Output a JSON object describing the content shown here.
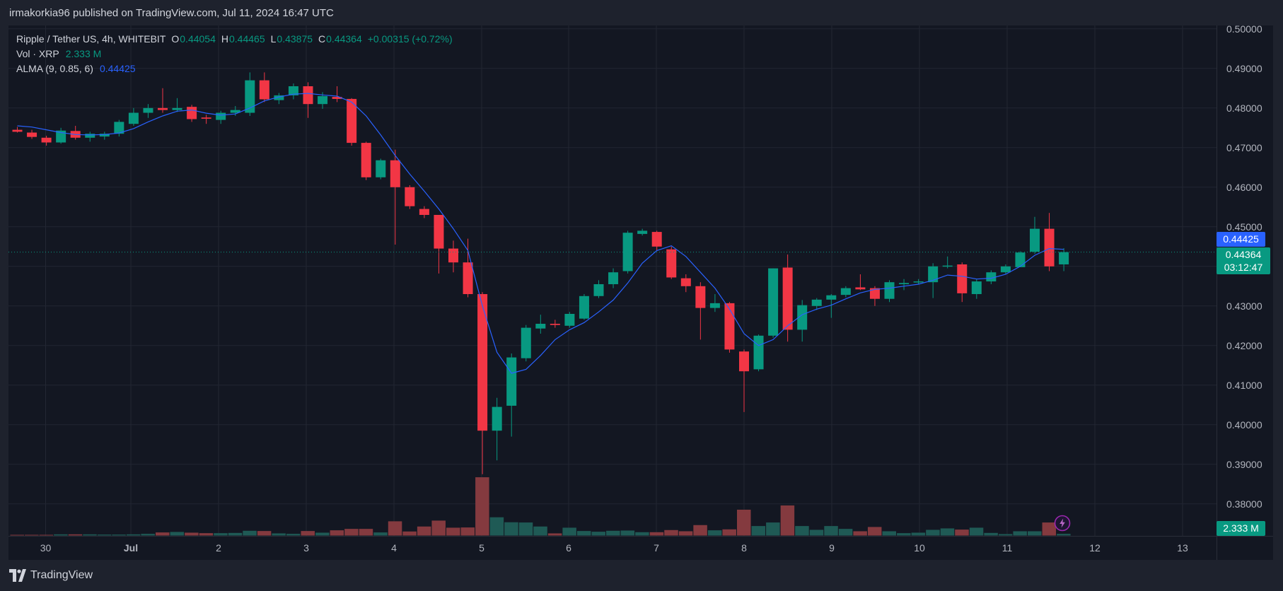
{
  "header": {
    "publish_text": "irmakorkia96 published on TradingView.com, Jul 11, 2024 16:47 UTC"
  },
  "legend": {
    "symbol": "Ripple / Tether US, 4h, WHITEBIT",
    "o_label": "O",
    "o_value": "0.44054",
    "h_label": "H",
    "h_value": "0.44465",
    "l_label": "L",
    "l_value": "0.43875",
    "c_label": "C",
    "c_value": "0.44364",
    "change": "+0.00315 (+0.72%)",
    "vol_label": "Vol · XRP",
    "vol_value": "2.333 M",
    "alma_label": "ALMA (9, 0.85, 6)",
    "alma_value": "0.44425"
  },
  "tags": {
    "alma": "0.44425",
    "price": "0.44364",
    "countdown": "03:12:47",
    "volume": "2.333 M"
  },
  "footer": {
    "brand": "TradingView"
  },
  "icons": {
    "logo": "tradingview-logo-icon",
    "bolt": "lightning-bolt-icon"
  },
  "colors": {
    "up": "#089981",
    "down": "#f23645",
    "alma": "#2962ff",
    "bg": "#131722",
    "grid": "#232733",
    "text": "#b2b5be"
  },
  "chart_data": {
    "type": "candlestick",
    "symbol": "XRP/USDT",
    "timeframe": "4h",
    "exchange": "WHITEBIT",
    "x_tick_labels": [
      "30",
      "Jul",
      "2",
      "3",
      "4",
      "5",
      "6",
      "7",
      "8",
      "9",
      "10",
      "11",
      "12",
      "13"
    ],
    "y_tick_labels": [
      "0.50000",
      "0.49000",
      "0.48000",
      "0.47000",
      "0.46000",
      "0.45000",
      "0.43000",
      "0.42000",
      "0.41000",
      "0.40000",
      "0.39000",
      "0.38000"
    ],
    "ylim": [
      0.3725,
      0.5005
    ],
    "grid": true,
    "candles_ohlc": [
      [
        0.4745,
        0.4752,
        0.4738,
        0.474
      ],
      [
        0.4738,
        0.4745,
        0.4722,
        0.4727
      ],
      [
        0.4725,
        0.473,
        0.4705,
        0.4713
      ],
      [
        0.4713,
        0.475,
        0.471,
        0.4743
      ],
      [
        0.4742,
        0.4755,
        0.472,
        0.4725
      ],
      [
        0.4725,
        0.474,
        0.4715,
        0.4735
      ],
      [
        0.4728,
        0.474,
        0.472,
        0.4735
      ],
      [
        0.4735,
        0.477,
        0.4728,
        0.4765
      ],
      [
        0.476,
        0.48,
        0.4755,
        0.4788
      ],
      [
        0.4788,
        0.481,
        0.4775,
        0.48
      ],
      [
        0.48,
        0.485,
        0.4788,
        0.4795
      ],
      [
        0.4795,
        0.4825,
        0.479,
        0.48
      ],
      [
        0.4803,
        0.4808,
        0.4765,
        0.4772
      ],
      [
        0.4776,
        0.4783,
        0.476,
        0.4773
      ],
      [
        0.477,
        0.4793,
        0.476,
        0.4788
      ],
      [
        0.4788,
        0.4805,
        0.478,
        0.4795
      ],
      [
        0.4788,
        0.489,
        0.478,
        0.487
      ],
      [
        0.487,
        0.489,
        0.4815,
        0.4822
      ],
      [
        0.482,
        0.4838,
        0.481,
        0.4832
      ],
      [
        0.4832,
        0.4862,
        0.4822,
        0.4855
      ],
      [
        0.4855,
        0.4865,
        0.4775,
        0.481
      ],
      [
        0.481,
        0.484,
        0.4798,
        0.483
      ],
      [
        0.4828,
        0.4855,
        0.4815,
        0.4823
      ],
      [
        0.4823,
        0.4825,
        0.4705,
        0.4712
      ],
      [
        0.4712,
        0.4715,
        0.4618,
        0.4625
      ],
      [
        0.4625,
        0.4672,
        0.462,
        0.4668
      ],
      [
        0.4668,
        0.4695,
        0.4455,
        0.46
      ],
      [
        0.46,
        0.4605,
        0.4545,
        0.4552
      ],
      [
        0.4545,
        0.4552,
        0.4522,
        0.453
      ],
      [
        0.453,
        0.453,
        0.4382,
        0.4445
      ],
      [
        0.4445,
        0.4465,
        0.4385,
        0.441
      ],
      [
        0.441,
        0.447,
        0.4322,
        0.433
      ],
      [
        0.433,
        0.4335,
        0.3875,
        0.3985
      ],
      [
        0.3985,
        0.4068,
        0.391,
        0.4045
      ],
      [
        0.4048,
        0.418,
        0.397,
        0.417
      ],
      [
        0.4168,
        0.4252,
        0.416,
        0.4245
      ],
      [
        0.4243,
        0.4278,
        0.423,
        0.4255
      ],
      [
        0.4255,
        0.4265,
        0.4245,
        0.4252
      ],
      [
        0.425,
        0.4285,
        0.4245,
        0.428
      ],
      [
        0.4268,
        0.433,
        0.4265,
        0.4325
      ],
      [
        0.4325,
        0.4365,
        0.432,
        0.4355
      ],
      [
        0.4355,
        0.4395,
        0.4345,
        0.4385
      ],
      [
        0.4388,
        0.449,
        0.4382,
        0.4485
      ],
      [
        0.4482,
        0.4495,
        0.4478,
        0.449
      ],
      [
        0.4487,
        0.449,
        0.444,
        0.445
      ],
      [
        0.4443,
        0.445,
        0.4368,
        0.4372
      ],
      [
        0.437,
        0.438,
        0.4335,
        0.435
      ],
      [
        0.435,
        0.436,
        0.4215,
        0.4295
      ],
      [
        0.4295,
        0.433,
        0.4285,
        0.4307
      ],
      [
        0.4307,
        0.431,
        0.4182,
        0.419
      ],
      [
        0.4185,
        0.419,
        0.4032,
        0.4135
      ],
      [
        0.414,
        0.4228,
        0.4135,
        0.4225
      ],
      [
        0.4225,
        0.4395,
        0.422,
        0.4395
      ],
      [
        0.4397,
        0.443,
        0.421,
        0.424
      ],
      [
        0.424,
        0.4315,
        0.421,
        0.4302
      ],
      [
        0.43,
        0.432,
        0.429,
        0.4316
      ],
      [
        0.4316,
        0.433,
        0.427,
        0.4327
      ],
      [
        0.4328,
        0.435,
        0.4322,
        0.4345
      ],
      [
        0.4347,
        0.438,
        0.434,
        0.4342
      ],
      [
        0.4345,
        0.435,
        0.43,
        0.4318
      ],
      [
        0.4318,
        0.4365,
        0.431,
        0.436
      ],
      [
        0.4355,
        0.4368,
        0.434,
        0.4358
      ],
      [
        0.436,
        0.4368,
        0.4355,
        0.4362
      ],
      [
        0.436,
        0.4408,
        0.432,
        0.44
      ],
      [
        0.4402,
        0.4425,
        0.4395,
        0.4402
      ],
      [
        0.4405,
        0.441,
        0.431,
        0.4332
      ],
      [
        0.433,
        0.4368,
        0.4318,
        0.4362
      ],
      [
        0.4362,
        0.439,
        0.4355,
        0.4385
      ],
      [
        0.4385,
        0.4405,
        0.438,
        0.44
      ],
      [
        0.4398,
        0.4438,
        0.4398,
        0.4435
      ],
      [
        0.4437,
        0.4525,
        0.4432,
        0.4495
      ],
      [
        0.4495,
        0.4535,
        0.4388,
        0.44
      ],
      [
        0.4405,
        0.4446,
        0.4388,
        0.4436
      ]
    ],
    "alma_values": [
      0.4755,
      0.4752,
      0.4745,
      0.4738,
      0.4733,
      0.4732,
      0.4733,
      0.4737,
      0.4748,
      0.4765,
      0.478,
      0.4792,
      0.4795,
      0.4787,
      0.4782,
      0.4785,
      0.48,
      0.4818,
      0.4828,
      0.4835,
      0.4837,
      0.4833,
      0.483,
      0.4815,
      0.478,
      0.4732,
      0.468,
      0.4633,
      0.459,
      0.4545,
      0.4495,
      0.444,
      0.43,
      0.4183,
      0.413,
      0.414,
      0.4175,
      0.4215,
      0.424,
      0.4258,
      0.4285,
      0.4315,
      0.4358,
      0.4408,
      0.444,
      0.4452,
      0.4425,
      0.4385,
      0.4345,
      0.4292,
      0.423,
      0.42,
      0.4215,
      0.425,
      0.4278,
      0.4292,
      0.4302,
      0.4318,
      0.4333,
      0.4342,
      0.4345,
      0.435,
      0.4355,
      0.4365,
      0.4378,
      0.4375,
      0.4368,
      0.437,
      0.438,
      0.44,
      0.4428,
      0.4445,
      0.4443
    ],
    "volume_relative": [
      0.03,
      0.03,
      0.03,
      0.05,
      0.05,
      0.05,
      0.04,
      0.04,
      0.05,
      0.07,
      0.13,
      0.15,
      0.12,
      0.1,
      0.1,
      0.11,
      0.2,
      0.19,
      0.09,
      0.07,
      0.19,
      0.12,
      0.22,
      0.28,
      0.28,
      0.13,
      0.6,
      0.17,
      0.38,
      0.63,
      0.33,
      0.34,
      2.46,
      0.77,
      0.56,
      0.55,
      0.38,
      0.09,
      0.33,
      0.19,
      0.16,
      0.2,
      0.21,
      0.14,
      0.14,
      0.23,
      0.18,
      0.44,
      0.22,
      0.26,
      1.09,
      0.4,
      0.55,
      1.27,
      0.4,
      0.24,
      0.4,
      0.28,
      0.18,
      0.36,
      0.18,
      0.1,
      0.12,
      0.24,
      0.3,
      0.25,
      0.33,
      0.11,
      0.06,
      0.18,
      0.18,
      0.55,
      0.07
    ]
  }
}
